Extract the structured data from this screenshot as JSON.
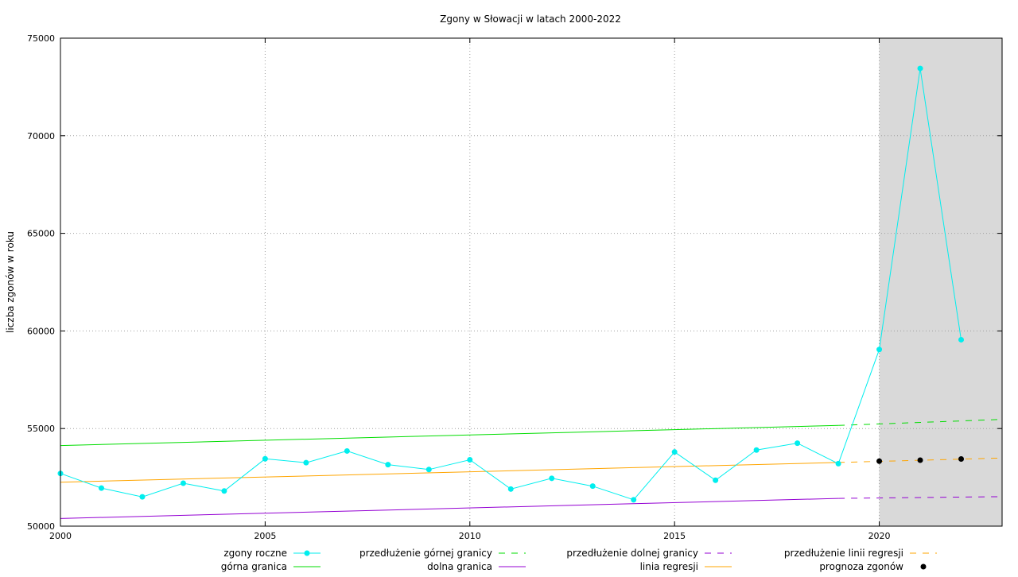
{
  "chart_data": {
    "type": "line",
    "title": "Zgony w Słowacji w latach 2000-2022",
    "xlabel": "",
    "ylabel": "liczba zgonów w roku",
    "xlim": [
      2000,
      2023
    ],
    "ylim": [
      50000,
      75000
    ],
    "x_ticks": [
      2000,
      2005,
      2010,
      2015,
      2020
    ],
    "y_ticks": [
      50000,
      55000,
      60000,
      65000,
      70000,
      75000
    ],
    "grid": true,
    "shaded_region": {
      "x_from": 2020,
      "x_to": 2023,
      "color": "#d9d9d9"
    },
    "legend_position": "bottom",
    "series": [
      {
        "key": "deaths",
        "name": "zgony roczne",
        "color": "#00eeee",
        "style": "line-points",
        "x": [
          2000,
          2001,
          2002,
          2003,
          2004,
          2005,
          2006,
          2007,
          2008,
          2009,
          2010,
          2011,
          2012,
          2013,
          2014,
          2015,
          2016,
          2017,
          2018,
          2019,
          2020,
          2021,
          2022
        ],
        "y": [
          52700,
          51950,
          51500,
          52200,
          51800,
          53450,
          53250,
          53850,
          53150,
          52900,
          53400,
          51900,
          52450,
          52050,
          51350,
          53800,
          52350,
          53900,
          54250,
          53200,
          59050,
          73450,
          59550
        ]
      },
      {
        "key": "upper",
        "name": "górna granica",
        "color": "#00dd00",
        "style": "solid",
        "x": [
          2000,
          2019
        ],
        "y": [
          54130,
          55160
        ]
      },
      {
        "key": "upper_ext",
        "name": "przedłużenie górnej granicy",
        "color": "#00dd00",
        "style": "dashed",
        "x": [
          2019,
          2023
        ],
        "y": [
          55160,
          55470
        ]
      },
      {
        "key": "lower",
        "name": "dolna granica",
        "color": "#9400d3",
        "style": "solid",
        "x": [
          2000,
          2019
        ],
        "y": [
          50390,
          51420
        ]
      },
      {
        "key": "lower_ext",
        "name": "przedłużenie dolnej granicy",
        "color": "#9400d3",
        "style": "dashed",
        "x": [
          2019,
          2023
        ],
        "y": [
          51420,
          51510
        ]
      },
      {
        "key": "regression",
        "name": "linia regresji",
        "color": "#ffa500",
        "style": "solid",
        "x": [
          2000,
          2019
        ],
        "y": [
          52250,
          53260
        ]
      },
      {
        "key": "regression_ext",
        "name": "przedłużenie linii regresji",
        "color": "#ffa500",
        "style": "dashed",
        "x": [
          2019,
          2023
        ],
        "y": [
          53260,
          53490
        ]
      },
      {
        "key": "forecast",
        "name": "prognoza zgonów",
        "color": "#000000",
        "style": "points",
        "x": [
          2020,
          2021,
          2022
        ],
        "y": [
          53330,
          53380,
          53440
        ]
      }
    ],
    "legend": [
      {
        "series": "deaths",
        "label": "zgony roczne"
      },
      {
        "series": "upper_ext",
        "label": "przedłużenie górnej granicy"
      },
      {
        "series": "lower_ext",
        "label": "przedłużenie dolnej granicy"
      },
      {
        "series": "regression_ext",
        "label": "przedłużenie linii regresji"
      },
      {
        "series": "upper",
        "label": "górna granica"
      },
      {
        "series": "lower",
        "label": "dolna granica"
      },
      {
        "series": "regression",
        "label": "linia regresji"
      },
      {
        "series": "forecast",
        "label": "prognoza zgonów"
      }
    ]
  }
}
